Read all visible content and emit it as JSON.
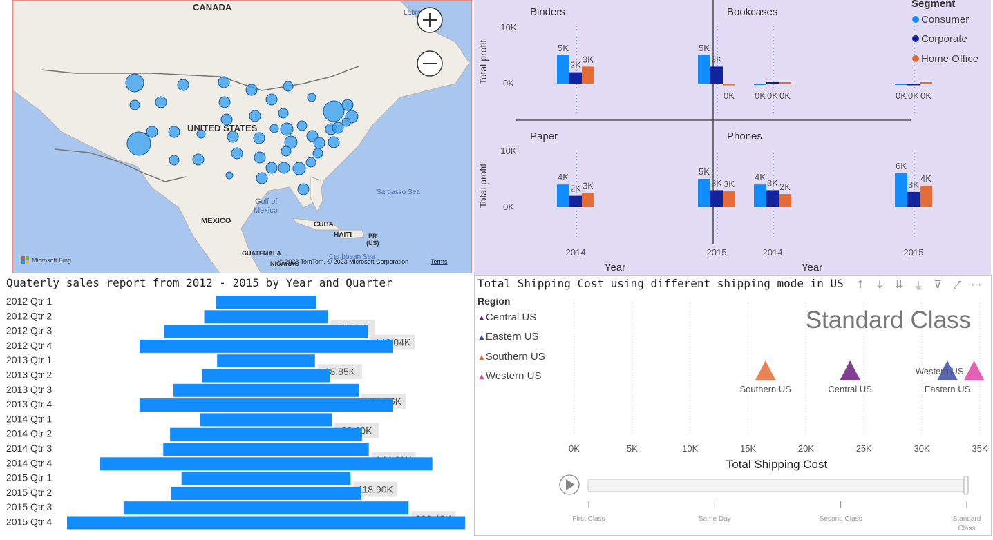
{
  "map": {
    "labels": {
      "canada": "CANADA",
      "labrador": "Labra",
      "us": "UNITED STATES",
      "gulf": "Gulf of\nMexico",
      "sargasso": "Sargasso Sea",
      "mexico": "MEXICO",
      "cuba": "CUBA",
      "haiti": "HAITI",
      "pr": "PR\n(US)",
      "guatemala": "GUATEMALA",
      "caribbean": "Caribbean Sea",
      "nica": "NICARAG",
      "copyright": "© 2023 TomTom, © 2023 Microsoft Corporation",
      "terms": "Terms",
      "bing": "Microsoft Bing"
    },
    "zoom_in_label": "+",
    "zoom_out_label": "−",
    "bubble_color": "#3aa0f0"
  },
  "profit_chart": {
    "legend_title": "Segment",
    "segments": [
      {
        "name": "Consumer",
        "color": "#118dff"
      },
      {
        "name": "Corporate",
        "color": "#12239e"
      },
      {
        "name": "Home Office",
        "color": "#e66c37"
      }
    ],
    "ylabel": "Total profit",
    "xlabel": "Year",
    "yticks": [
      "10K",
      "0K"
    ]
  },
  "sales_chart": {
    "title": "Quaterly sales report from 2012 - 2015 by Year and Quarter"
  },
  "ship_chart": {
    "title": "Total Shipping Cost using different shipping mode in US",
    "legend_title": "Region",
    "current_frame": "Standard Class",
    "xlabel": "Total Shipping Cost",
    "play_axis": [
      "First Class",
      "Same Day",
      "Second Class",
      "Standard Class"
    ]
  },
  "chart_data": [
    {
      "type": "bar",
      "title": "",
      "xlabel": "Year",
      "ylabel": "Total profit",
      "ylim": [
        0,
        10000
      ],
      "categories": [
        "2014",
        "2015"
      ],
      "panels": [
        {
          "name": "Binders",
          "series": [
            {
              "name": "Consumer",
              "values": [
                5000,
                5000
              ],
              "labels": [
                "5K",
                "5K"
              ]
            },
            {
              "name": "Corporate",
              "values": [
                2000,
                3000
              ],
              "labels": [
                "2K",
                "3K"
              ]
            },
            {
              "name": "Home Office",
              "values": [
                3000,
                -300
              ],
              "labels": [
                "3K",
                "0K"
              ]
            }
          ]
        },
        {
          "name": "Bookcases",
          "series": [
            {
              "name": "Consumer",
              "values": [
                -100,
                -200
              ],
              "labels": [
                "0K",
                "0K"
              ]
            },
            {
              "name": "Corporate",
              "values": [
                200,
                -300
              ],
              "labels": [
                "0K",
                "0K"
              ]
            },
            {
              "name": "Home Office",
              "values": [
                150,
                150
              ],
              "labels": [
                "0K",
                "0K"
              ]
            }
          ]
        },
        {
          "name": "Paper",
          "series": [
            {
              "name": "Consumer",
              "values": [
                4000,
                5000
              ],
              "labels": [
                "4K",
                "5K"
              ]
            },
            {
              "name": "Corporate",
              "values": [
                2000,
                3000
              ],
              "labels": [
                "2K",
                "3K"
              ]
            },
            {
              "name": "Home Office",
              "values": [
                2500,
                2800
              ],
              "labels": [
                "3K",
                "3K"
              ]
            }
          ]
        },
        {
          "name": "Phones",
          "series": [
            {
              "name": "Consumer",
              "values": [
                4000,
                6000
              ],
              "labels": [
                "4K",
                "6K"
              ]
            },
            {
              "name": "Corporate",
              "values": [
                3000,
                2700
              ],
              "labels": [
                "3K",
                "3K"
              ]
            },
            {
              "name": "Home Office",
              "values": [
                2300,
                3800
              ],
              "labels": [
                "2K",
                "4K"
              ]
            }
          ]
        }
      ]
    },
    {
      "type": "bar",
      "orientation": "horizontal-centered",
      "title": "Quaterly sales report from 2012 - 2015 by Year and Quarter",
      "categories": [
        "2012 Qtr 1",
        "2012 Qtr 2",
        "2012 Qtr 3",
        "2012 Qtr 4",
        "2013 Qtr 1",
        "2013 Qtr 2",
        "2013 Qtr 3",
        "2013 Qtr 4",
        "2014 Qtr 1",
        "2014 Qtr 2",
        "2014 Qtr 3",
        "2014 Qtr 4",
        "2015 Qtr 1",
        "2015 Qtr 2",
        "2015 Qtr 3",
        "2015 Qtr 4"
      ],
      "values": [
        70440,
        87020,
        143040,
        178000,
        68850,
        90000,
        130260,
        178000,
        92600,
        135000,
        144610,
        234000,
        118900,
        134000,
        200430,
        280000
      ],
      "labels": [
        "",
        "87.02K",
        "143.04K",
        "",
        "68.85K",
        "",
        "130.26K",
        "",
        "92.60K",
        "",
        "144.61K",
        "",
        "118.90K",
        "",
        "200.43K",
        ""
      ]
    },
    {
      "type": "scatter",
      "title": "Total Shipping Cost using different shipping mode in US",
      "xlabel": "Total Shipping Cost",
      "xlim": [
        0,
        35000
      ],
      "xticks": [
        "0K",
        "5K",
        "10K",
        "15K",
        "20K",
        "25K",
        "30K",
        "35K"
      ],
      "frame": "Standard Class",
      "series": [
        {
          "name": "Central US",
          "x": 23800,
          "color": "#6b1f7b"
        },
        {
          "name": "Eastern US",
          "x": 32200,
          "color": "#3b4ea8"
        },
        {
          "name": "Southern US",
          "x": 16500,
          "color": "#e66c37"
        },
        {
          "name": "Western US",
          "x": 34500,
          "color": "#e044a7"
        }
      ]
    }
  ]
}
